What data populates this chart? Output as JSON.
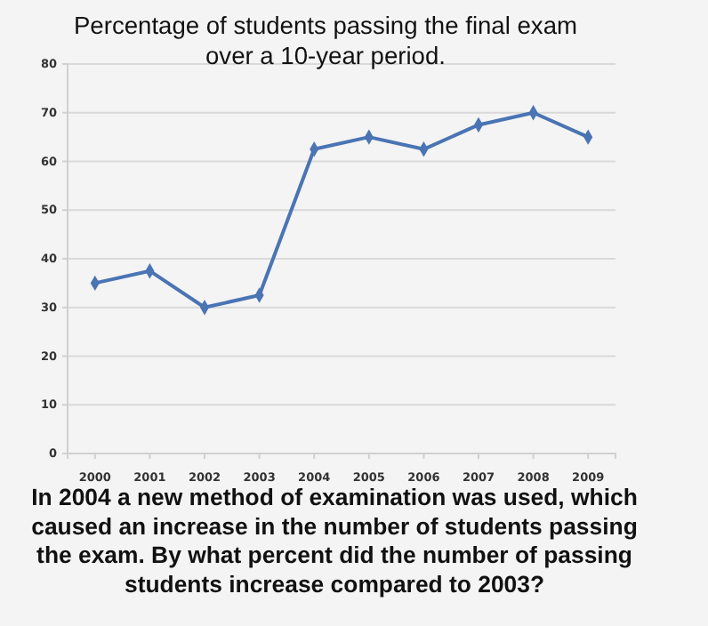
{
  "chart_data": {
    "type": "line",
    "title": "Percentage of students passing the final exam over a 10-year period.",
    "categories": [
      "2000",
      "2001",
      "2002",
      "2003",
      "2004",
      "2005",
      "2006",
      "2007",
      "2008",
      "2009"
    ],
    "series": [
      {
        "color": "#4a74b4",
        "values": [
          35,
          37.5,
          30,
          32.5,
          62.5,
          65,
          62.5,
          67.5,
          70,
          65
        ]
      }
    ],
    "ylim": [
      0,
      80
    ],
    "yticks": [
      0,
      10,
      20,
      30,
      40,
      50,
      60,
      70,
      80
    ],
    "grid": "y",
    "marker": "diamond",
    "annotations": [
      "In 2004 a new method of examination was used, which caused an increase in the number of students passing the exam. By what percent did the number of passing students increase compared to 2003?"
    ]
  }
}
